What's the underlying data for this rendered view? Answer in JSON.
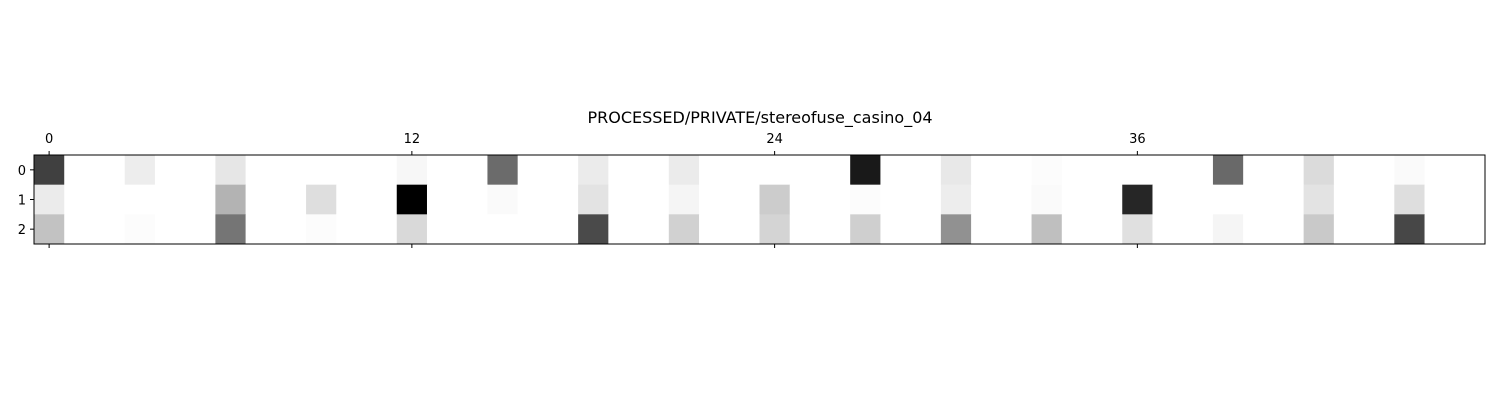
{
  "chart_data": {
    "type": "heatmap",
    "title": "PROCESSED/PRIVATE/stereofuse_casino_04",
    "colormap": "gray_r",
    "value_range": [
      0,
      1
    ],
    "rows": [
      0,
      1,
      2
    ],
    "columns": 48,
    "x_ticks": [
      0,
      12,
      24,
      36
    ],
    "x_tick_labels": [
      "0",
      "12",
      "24",
      "36"
    ],
    "y_tick_labels": [
      "0",
      "1",
      "2"
    ],
    "grid": false,
    "values": [
      [
        0.75,
        0,
        0,
        0.07,
        0,
        0,
        0.1,
        0,
        0,
        0,
        0,
        0,
        0.03,
        0,
        0,
        0.58,
        0,
        0,
        0.08,
        0,
        0,
        0.08,
        0,
        0,
        0,
        0,
        0,
        0.9,
        0,
        0,
        0.09,
        0,
        0,
        0.01,
        0,
        0,
        0,
        0,
        0,
        0.59,
        0,
        0,
        0.14,
        0,
        0,
        0.02,
        0,
        0
      ],
      [
        0.08,
        0,
        0,
        0,
        0,
        0,
        0.3,
        0,
        0,
        0.13,
        0,
        0,
        1.0,
        0,
        0,
        0.02,
        0,
        0,
        0.11,
        0,
        0,
        0.04,
        0,
        0,
        0.2,
        0,
        0,
        0.01,
        0,
        0,
        0.07,
        0,
        0,
        0.02,
        0,
        0,
        0.85,
        0,
        0,
        0,
        0,
        0,
        0.11,
        0,
        0,
        0.13,
        0,
        0
      ],
      [
        0.24,
        0,
        0,
        0.01,
        0,
        0,
        0.54,
        0,
        0,
        0.01,
        0,
        0,
        0.15,
        0,
        0,
        0,
        0,
        0,
        0.71,
        0,
        0,
        0.18,
        0,
        0,
        0.17,
        0,
        0,
        0.19,
        0,
        0,
        0.43,
        0,
        0,
        0.25,
        0,
        0,
        0.12,
        0,
        0,
        0.04,
        0,
        0,
        0.21,
        0,
        0,
        0.72,
        0,
        0
      ]
    ]
  }
}
